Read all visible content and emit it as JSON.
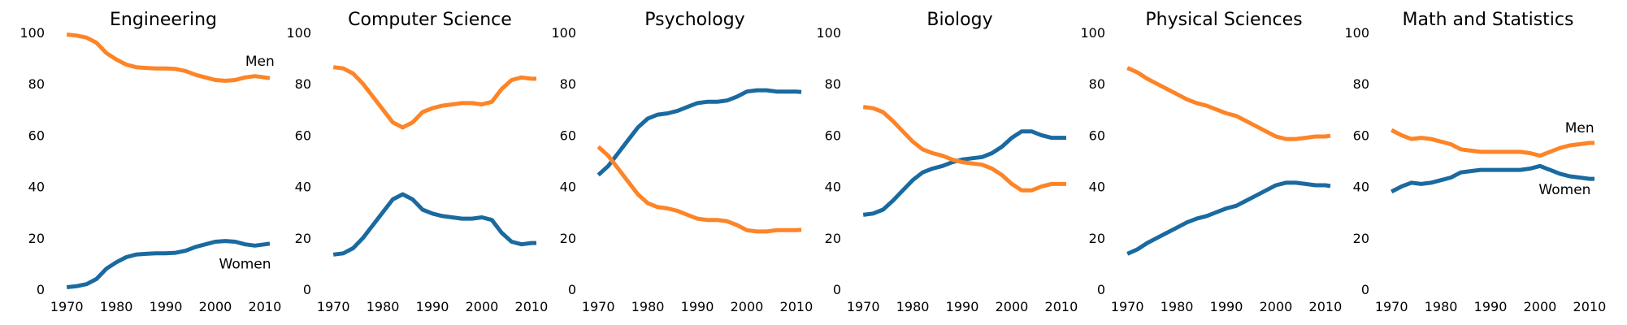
{
  "colors": {
    "women": "#1a6aa0",
    "men": "#fd8427"
  },
  "chart_data": [
    {
      "type": "line",
      "title": "Engineering",
      "xlabel": "",
      "ylabel": "",
      "xlim": [
        1968,
        2011
      ],
      "ylim": [
        0,
        100
      ],
      "xticks": [
        1970,
        1980,
        1990,
        2000,
        2010
      ],
      "yticks": [
        0,
        20,
        40,
        60,
        80,
        100
      ],
      "grid": false,
      "x": [
        1970,
        1972,
        1974,
        1976,
        1978,
        1980,
        1982,
        1984,
        1986,
        1988,
        1990,
        1992,
        1994,
        1996,
        1998,
        2000,
        2002,
        2004,
        2006,
        2008,
        2010,
        2011
      ],
      "series": [
        {
          "key": "women",
          "values": [
            0.8,
            1.2,
            2.0,
            4.0,
            8.0,
            10.5,
            12.5,
            13.5,
            13.8,
            14.0,
            14.0,
            14.2,
            15.0,
            16.5,
            17.5,
            18.5,
            18.8,
            18.5,
            17.5,
            17.0,
            17.5,
            17.8
          ]
        },
        {
          "key": "men",
          "values": [
            99.2,
            98.8,
            98.0,
            96.0,
            92.0,
            89.5,
            87.5,
            86.5,
            86.2,
            86.0,
            86.0,
            85.8,
            85.0,
            83.5,
            82.5,
            81.5,
            81.2,
            81.5,
            82.5,
            83.0,
            82.5,
            82.2
          ]
        }
      ],
      "annotations": [
        {
          "text": "Men",
          "x": 2009,
          "y": 87
        },
        {
          "text": "Women",
          "x": 2006,
          "y": 8
        }
      ]
    },
    {
      "type": "line",
      "title": "Computer Science",
      "xlabel": "",
      "ylabel": "",
      "xlim": [
        1968,
        2011
      ],
      "ylim": [
        0,
        100
      ],
      "xticks": [
        1970,
        1980,
        1990,
        2000,
        2010
      ],
      "yticks": [
        0,
        20,
        40,
        60,
        80,
        100
      ],
      "grid": false,
      "x": [
        1970,
        1972,
        1974,
        1976,
        1978,
        1980,
        1982,
        1984,
        1986,
        1988,
        1990,
        1992,
        1994,
        1996,
        1998,
        2000,
        2002,
        2004,
        2006,
        2008,
        2010,
        2011
      ],
      "series": [
        {
          "key": "women",
          "values": [
            13.5,
            14.0,
            16.0,
            20.0,
            25.0,
            30.0,
            35.0,
            37.0,
            35.0,
            31.0,
            29.5,
            28.5,
            28.0,
            27.5,
            27.5,
            28.0,
            27.0,
            22.0,
            18.5,
            17.5,
            18.0,
            18.0
          ]
        },
        {
          "key": "men",
          "values": [
            86.5,
            86.0,
            84.0,
            80.0,
            75.0,
            70.0,
            65.0,
            63.0,
            65.0,
            69.0,
            70.5,
            71.5,
            72.0,
            72.5,
            72.5,
            72.0,
            73.0,
            78.0,
            81.5,
            82.5,
            82.0,
            82.0
          ]
        }
      ],
      "annotations": []
    },
    {
      "type": "line",
      "title": "Psychology",
      "xlabel": "",
      "ylabel": "",
      "xlim": [
        1968,
        2011
      ],
      "ylim": [
        0,
        100
      ],
      "xticks": [
        1970,
        1980,
        1990,
        2000,
        2010
      ],
      "yticks": [
        0,
        20,
        40,
        60,
        80,
        100
      ],
      "grid": false,
      "x": [
        1970,
        1972,
        1974,
        1976,
        1978,
        1980,
        1982,
        1984,
        1986,
        1988,
        1990,
        1992,
        1994,
        1996,
        1998,
        2000,
        2002,
        2004,
        2006,
        2008,
        2010,
        2011
      ],
      "series": [
        {
          "key": "women",
          "values": [
            44.5,
            48.0,
            53.0,
            58.0,
            63.0,
            66.5,
            68.0,
            68.5,
            69.5,
            71.0,
            72.5,
            73.0,
            73.0,
            73.5,
            75.0,
            77.0,
            77.5,
            77.5,
            77.0,
            77.0,
            77.0,
            76.8
          ]
        },
        {
          "key": "men",
          "values": [
            55.5,
            52.0,
            47.0,
            42.0,
            37.0,
            33.5,
            32.0,
            31.5,
            30.5,
            29.0,
            27.5,
            27.0,
            27.0,
            26.5,
            25.0,
            23.0,
            22.5,
            22.5,
            23.0,
            23.0,
            23.0,
            23.2
          ]
        }
      ],
      "annotations": []
    },
    {
      "type": "line",
      "title": "Biology",
      "xlabel": "",
      "ylabel": "",
      "xlim": [
        1968,
        2011
      ],
      "ylim": [
        0,
        100
      ],
      "xticks": [
        1970,
        1980,
        1990,
        2000,
        2010
      ],
      "yticks": [
        0,
        20,
        40,
        60,
        80,
        100
      ],
      "grid": false,
      "x": [
        1970,
        1972,
        1974,
        1976,
        1978,
        1980,
        1982,
        1984,
        1986,
        1988,
        1990,
        1992,
        1994,
        1996,
        1998,
        2000,
        2002,
        2004,
        2006,
        2008,
        2010,
        2011
      ],
      "series": [
        {
          "key": "women",
          "values": [
            29.0,
            29.5,
            31.0,
            34.5,
            38.5,
            42.5,
            45.5,
            47.0,
            48.0,
            49.5,
            50.5,
            51.0,
            51.5,
            53.0,
            55.5,
            59.0,
            61.5,
            61.5,
            60.0,
            59.0,
            59.0,
            59.0
          ]
        },
        {
          "key": "men",
          "values": [
            71.0,
            70.5,
            69.0,
            65.5,
            61.5,
            57.5,
            54.5,
            53.0,
            52.0,
            50.5,
            49.5,
            49.0,
            48.5,
            47.0,
            44.5,
            41.0,
            38.5,
            38.5,
            40.0,
            41.0,
            41.0,
            41.0
          ]
        }
      ],
      "annotations": []
    },
    {
      "type": "line",
      "title": "Physical Sciences",
      "xlabel": "",
      "ylabel": "",
      "xlim": [
        1968,
        2011
      ],
      "ylim": [
        0,
        100
      ],
      "xticks": [
        1970,
        1980,
        1990,
        2000,
        2010
      ],
      "yticks": [
        0,
        20,
        40,
        60,
        80,
        100
      ],
      "grid": false,
      "x": [
        1970,
        1972,
        1974,
        1976,
        1978,
        1980,
        1982,
        1984,
        1986,
        1988,
        1990,
        1992,
        1994,
        1996,
        1998,
        2000,
        2002,
        2004,
        2006,
        2008,
        2010,
        2011
      ],
      "series": [
        {
          "key": "women",
          "values": [
            13.8,
            15.5,
            18.0,
            20.0,
            22.0,
            24.0,
            26.0,
            27.5,
            28.5,
            30.0,
            31.5,
            32.5,
            34.5,
            36.5,
            38.5,
            40.5,
            41.5,
            41.5,
            41.0,
            40.5,
            40.5,
            40.2
          ]
        },
        {
          "key": "men",
          "values": [
            86.2,
            84.5,
            82.0,
            80.0,
            78.0,
            76.0,
            74.0,
            72.5,
            71.5,
            70.0,
            68.5,
            67.5,
            65.5,
            63.5,
            61.5,
            59.5,
            58.5,
            58.5,
            59.0,
            59.5,
            59.5,
            59.8
          ]
        }
      ],
      "annotations": []
    },
    {
      "type": "line",
      "title": "Math and Statistics",
      "xlabel": "",
      "ylabel": "",
      "xlim": [
        1968,
        2011
      ],
      "ylim": [
        0,
        100
      ],
      "xticks": [
        1970,
        1980,
        1990,
        2000,
        2010
      ],
      "yticks": [
        0,
        20,
        40,
        60,
        80,
        100
      ],
      "grid": false,
      "x": [
        1970,
        1972,
        1974,
        1976,
        1978,
        1980,
        1982,
        1984,
        1986,
        1988,
        1990,
        1992,
        1994,
        1996,
        1998,
        2000,
        2002,
        2004,
        2006,
        2008,
        2010,
        2011
      ],
      "series": [
        {
          "key": "women",
          "values": [
            38.0,
            40.0,
            41.5,
            41.0,
            41.5,
            42.5,
            43.5,
            45.5,
            46.0,
            46.5,
            46.5,
            46.5,
            46.5,
            46.5,
            47.0,
            48.0,
            46.5,
            45.0,
            44.0,
            43.5,
            43.0,
            43.0
          ]
        },
        {
          "key": "men",
          "values": [
            62.0,
            60.0,
            58.5,
            59.0,
            58.5,
            57.5,
            56.5,
            54.5,
            54.0,
            53.5,
            53.5,
            53.5,
            53.5,
            53.5,
            53.0,
            52.0,
            53.5,
            55.0,
            56.0,
            56.5,
            57.0,
            57.0
          ]
        }
      ],
      "annotations": [
        {
          "text": "Men",
          "x": 2008,
          "y": 61
        },
        {
          "text": "Women",
          "x": 2005,
          "y": 37
        }
      ]
    }
  ]
}
